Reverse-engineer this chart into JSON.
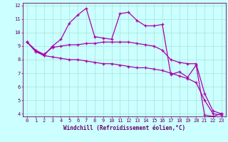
{
  "line1_x": [
    0,
    1,
    2,
    3,
    4,
    5,
    6,
    7,
    8,
    9,
    10,
    11,
    12,
    13,
    14,
    15,
    16,
    17,
    18,
    19,
    20,
    21,
    22,
    23
  ],
  "line1_y": [
    9.3,
    8.7,
    8.3,
    9.0,
    9.5,
    10.7,
    11.3,
    11.8,
    9.7,
    9.6,
    9.5,
    11.4,
    11.5,
    10.9,
    10.5,
    10.5,
    10.6,
    6.9,
    7.1,
    6.7,
    7.6,
    3.9,
    3.8,
    4.0
  ],
  "line2_x": [
    0,
    1,
    2,
    3,
    4,
    5,
    6,
    7,
    8,
    9,
    10,
    11,
    12,
    13,
    14,
    15,
    16,
    17,
    18,
    19,
    20,
    21,
    22,
    23
  ],
  "line2_y": [
    9.3,
    8.7,
    8.4,
    8.9,
    9.0,
    9.1,
    9.1,
    9.2,
    9.2,
    9.3,
    9.3,
    9.3,
    9.3,
    9.2,
    9.1,
    9.0,
    8.7,
    8.0,
    7.8,
    7.7,
    7.7,
    5.5,
    4.2,
    4.0
  ],
  "line3_x": [
    0,
    1,
    2,
    3,
    4,
    5,
    6,
    7,
    8,
    9,
    10,
    11,
    12,
    13,
    14,
    15,
    16,
    17,
    18,
    19,
    20,
    21,
    22,
    23
  ],
  "line3_y": [
    9.3,
    8.6,
    8.3,
    8.2,
    8.1,
    8.0,
    8.0,
    7.9,
    7.8,
    7.7,
    7.7,
    7.6,
    7.5,
    7.4,
    7.4,
    7.3,
    7.2,
    7.0,
    6.8,
    6.6,
    6.3,
    5.0,
    4.0,
    3.9
  ],
  "line_color": "#aa00aa",
  "marker": "+",
  "bg_color": "#ccffff",
  "grid_color": "#99ddcc",
  "spine_color": "#660066",
  "tick_color": "#660066",
  "label_color": "#660066",
  "xlabel": "Windchill (Refroidissement éolien,°C)",
  "xlim": [
    -0.5,
    23.5
  ],
  "ylim": [
    3.8,
    12.2
  ],
  "xticks": [
    0,
    1,
    2,
    3,
    4,
    5,
    6,
    7,
    8,
    9,
    10,
    11,
    12,
    13,
    14,
    15,
    16,
    17,
    18,
    19,
    20,
    21,
    22,
    23
  ],
  "yticks": [
    4,
    5,
    6,
    7,
    8,
    9,
    10,
    11,
    12
  ],
  "xlabel_fontsize": 5.5,
  "tick_fontsize": 5.0,
  "linewidth": 0.9,
  "markersize": 3.0
}
